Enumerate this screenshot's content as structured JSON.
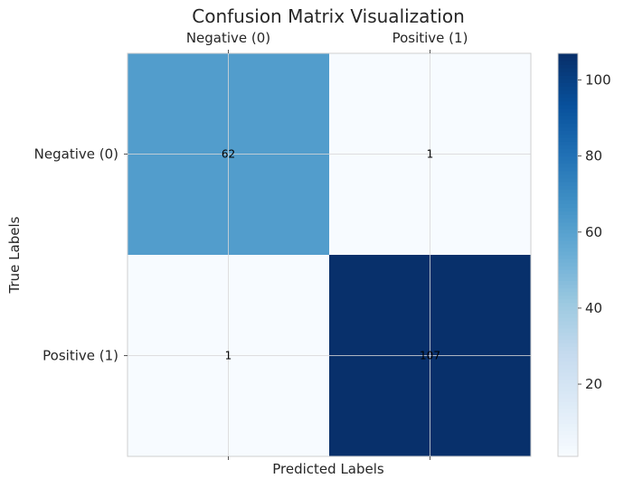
{
  "chart_data": {
    "type": "heatmap",
    "title": "Confusion Matrix Visualization",
    "xlabel": "Predicted Labels",
    "ylabel": "True Labels",
    "x_categories": [
      "Negative (0)",
      "Positive (1)"
    ],
    "y_categories": [
      "Negative (0)",
      "Positive (1)"
    ],
    "values": [
      [
        62,
        1
      ],
      [
        1,
        107
      ]
    ],
    "x_axis_position": "top",
    "colormap": "Blues",
    "colorbar": {
      "vmin": 1,
      "vmax": 107,
      "ticks": [
        20,
        40,
        60,
        80,
        100
      ]
    },
    "grid": true
  }
}
